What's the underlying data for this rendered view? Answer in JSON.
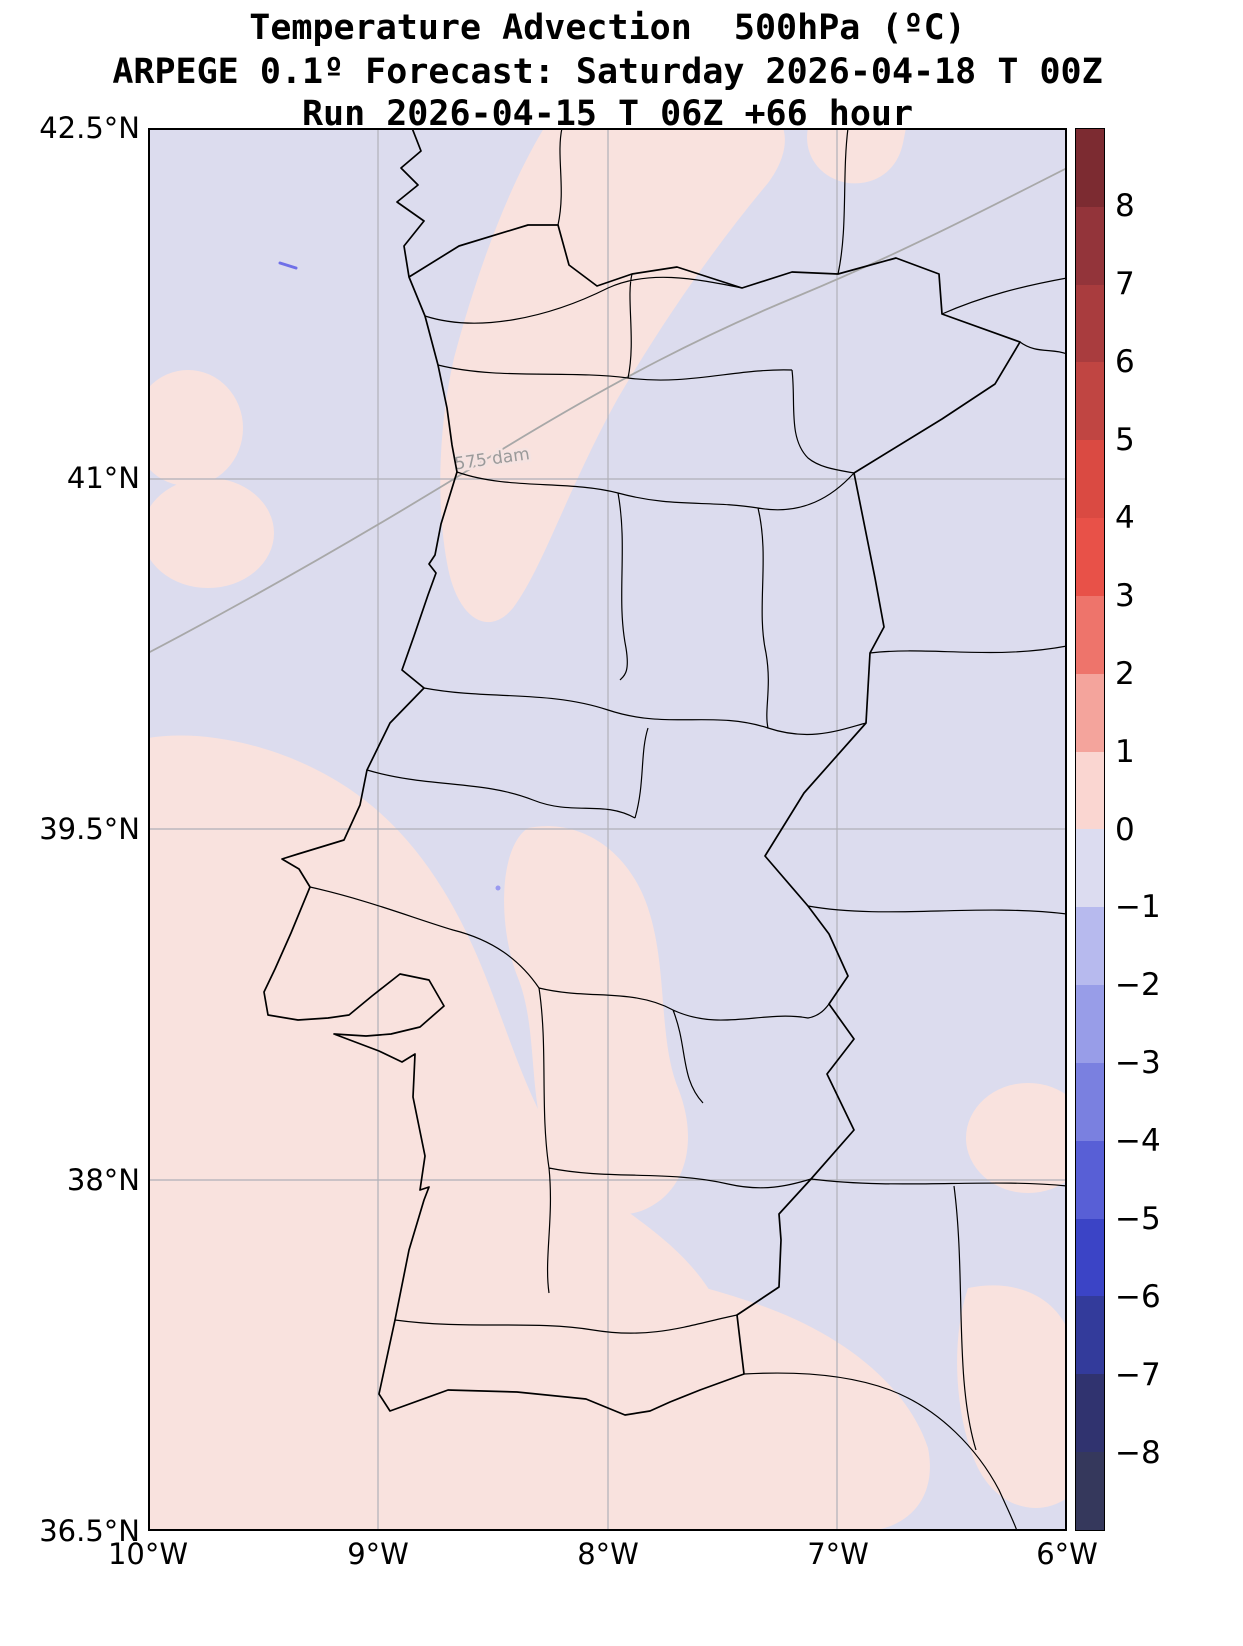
{
  "title": {
    "line1": "Temperature Advection  500hPa (ºC)",
    "line2": "ARPEGE 0.1º Forecast: Saturday 2026-04-18 T 00Z",
    "line3": "Run 2026-04-15 T 06Z +66 hour"
  },
  "axes": {
    "lat_ticks": [
      "42.5°N",
      "41°N",
      "39.5°N",
      "38°N",
      "36.5°N"
    ],
    "lon_ticks": [
      "10°W",
      "9°W",
      "8°W",
      "7°W",
      "6°W"
    ],
    "lat_range": [
      36.5,
      42.5
    ],
    "lon_range": [
      -10,
      -6
    ]
  },
  "map": {
    "contour_label": "575 dam",
    "colors": {
      "negative_fill": "#dcdcee",
      "positive_fill": "#f9e2de",
      "boundary": "#000000",
      "contour_line": "#a8a8a8",
      "gridline": "#b0b0b8"
    }
  },
  "colorbar": {
    "vmax": 9,
    "vmin": -9,
    "ticks": [
      {
        "value": 8,
        "label": "8"
      },
      {
        "value": 7,
        "label": "7"
      },
      {
        "value": 6,
        "label": "6"
      },
      {
        "value": 5,
        "label": "5"
      },
      {
        "value": 4,
        "label": "4"
      },
      {
        "value": 3,
        "label": "3"
      },
      {
        "value": 2,
        "label": "2"
      },
      {
        "value": 1,
        "label": "1"
      },
      {
        "value": 0,
        "label": "0"
      },
      {
        "value": -1,
        "label": "−1"
      },
      {
        "value": -2,
        "label": "−2"
      },
      {
        "value": -3,
        "label": "−3"
      },
      {
        "value": -4,
        "label": "−4"
      },
      {
        "value": -5,
        "label": "−5"
      },
      {
        "value": -6,
        "label": "−6"
      },
      {
        "value": -7,
        "label": "−7"
      },
      {
        "value": -8,
        "label": "−8"
      }
    ],
    "segments": [
      "#7c2b31",
      "#93343a",
      "#a93c3e",
      "#c04542",
      "#da4a42",
      "#e85148",
      "#ee746b",
      "#f4a49c",
      "#fad6d1",
      "#dcdcf0",
      "#b7baee",
      "#989de8",
      "#7a80e0",
      "#585fd6",
      "#3b44c6",
      "#333b9b",
      "#30336f",
      "#35385c"
    ]
  }
}
